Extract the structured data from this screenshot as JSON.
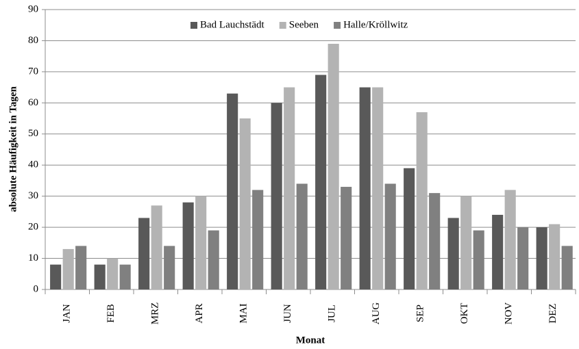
{
  "chart_data": {
    "type": "bar",
    "x_label": "Monat",
    "y_label": "absolute Häufigkeit in Tagen",
    "categories": [
      "JAN",
      "FEB",
      "MRZ",
      "APR",
      "MAI",
      "JUN",
      "JUL",
      "AUG",
      "SEP",
      "OKT",
      "NOV",
      "DEZ"
    ],
    "series": [
      {
        "name": "Bad Lauchstädt",
        "color": "#595959",
        "values": [
          8,
          8,
          23,
          28,
          63,
          60,
          69,
          65,
          39,
          23,
          24,
          20
        ]
      },
      {
        "name": "Seeben",
        "color": "#b3b3b3",
        "values": [
          13,
          10,
          27,
          30,
          55,
          65,
          79,
          65,
          57,
          30,
          32,
          21
        ]
      },
      {
        "name": "Halle/Kröllwitz",
        "color": "#808080",
        "values": [
          14,
          8,
          14,
          19,
          32,
          34,
          33,
          34,
          31,
          19,
          20,
          14
        ]
      }
    ],
    "ylim": [
      0,
      90
    ],
    "yticks": [
      0,
      10,
      20,
      30,
      40,
      50,
      60,
      70,
      80,
      90
    ],
    "grid": true,
    "legend": "top"
  }
}
